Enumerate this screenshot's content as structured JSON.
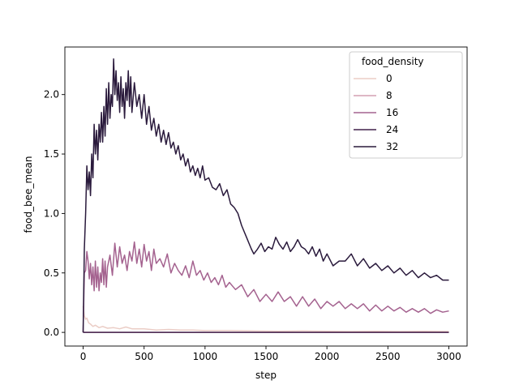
{
  "chart_data": {
    "type": "line",
    "title": "",
    "xlabel": "step",
    "ylabel": "food_bee_mean",
    "xlim": [
      -150,
      3150
    ],
    "ylim": [
      -0.115,
      2.4
    ],
    "xticks": [
      0,
      500,
      1000,
      1500,
      2000,
      2500,
      3000
    ],
    "xtick_labels": [
      "0",
      "500",
      "1000",
      "1500",
      "2000",
      "2500",
      "3000"
    ],
    "yticks": [
      0.0,
      0.5,
      1.0,
      1.5,
      2.0
    ],
    "ytick_labels": [
      "0.0",
      "0.5",
      "1.0",
      "1.5",
      "2.0"
    ],
    "grid": false,
    "legend": {
      "title": "food_density",
      "placement": "top-right",
      "entries": [
        {
          "label": "0",
          "color": "#ebcdc6"
        },
        {
          "label": "8",
          "color": "#d3a0b2"
        },
        {
          "label": "16",
          "color": "#a4628f"
        },
        {
          "label": "24",
          "color": "#40204a"
        },
        {
          "label": "32",
          "color": "#2a1a3c"
        }
      ]
    },
    "series": [
      {
        "name": "0",
        "color": "#ebcdc6",
        "x": [
          0,
          10,
          20,
          30,
          45,
          60,
          80,
          100,
          130,
          160,
          200,
          250,
          300,
          350,
          400,
          500,
          600,
          700,
          800,
          900,
          1000,
          1200,
          1400,
          1600,
          1800,
          2000,
          2200,
          2400,
          2600,
          2800,
          3000
        ],
        "y": [
          0.22,
          0.14,
          0.11,
          0.12,
          0.08,
          0.07,
          0.05,
          0.06,
          0.04,
          0.05,
          0.035,
          0.04,
          0.03,
          0.045,
          0.03,
          0.03,
          0.02,
          0.025,
          0.02,
          0.02,
          0.015,
          0.015,
          0.012,
          0.01,
          0.012,
          0.01,
          0.008,
          0.01,
          0.008,
          0.01,
          0.008
        ]
      },
      {
        "name": "8",
        "color": "#d3a0b2",
        "x": [
          0,
          3000
        ],
        "y": [
          0.0,
          0.0
        ]
      },
      {
        "name": "16",
        "color": "#a4628f",
        "x": [
          0,
          10,
          20,
          30,
          40,
          50,
          60,
          70,
          80,
          90,
          100,
          110,
          120,
          130,
          140,
          150,
          160,
          170,
          180,
          190,
          200,
          220,
          240,
          260,
          280,
          300,
          320,
          340,
          360,
          380,
          400,
          420,
          440,
          460,
          480,
          500,
          520,
          540,
          560,
          580,
          600,
          630,
          660,
          690,
          720,
          750,
          780,
          810,
          840,
          870,
          900,
          930,
          960,
          990,
          1020,
          1050,
          1080,
          1110,
          1140,
          1170,
          1200,
          1250,
          1300,
          1350,
          1400,
          1450,
          1500,
          1550,
          1600,
          1650,
          1700,
          1750,
          1800,
          1850,
          1900,
          1950,
          2000,
          2050,
          2100,
          2150,
          2200,
          2250,
          2300,
          2350,
          2400,
          2450,
          2500,
          2550,
          2600,
          2650,
          2700,
          2750,
          2800,
          2850,
          2900,
          2950,
          3000
        ],
        "y": [
          0.0,
          0.5,
          0.52,
          0.68,
          0.6,
          0.45,
          0.58,
          0.4,
          0.55,
          0.35,
          0.6,
          0.38,
          0.55,
          0.35,
          0.5,
          0.42,
          0.62,
          0.4,
          0.6,
          0.38,
          0.55,
          0.65,
          0.48,
          0.75,
          0.55,
          0.72,
          0.58,
          0.65,
          0.52,
          0.68,
          0.6,
          0.76,
          0.58,
          0.7,
          0.55,
          0.74,
          0.6,
          0.68,
          0.52,
          0.7,
          0.58,
          0.62,
          0.55,
          0.66,
          0.5,
          0.58,
          0.52,
          0.48,
          0.56,
          0.46,
          0.6,
          0.48,
          0.52,
          0.44,
          0.5,
          0.42,
          0.46,
          0.4,
          0.48,
          0.38,
          0.42,
          0.36,
          0.4,
          0.3,
          0.36,
          0.26,
          0.32,
          0.26,
          0.34,
          0.26,
          0.3,
          0.22,
          0.3,
          0.22,
          0.28,
          0.2,
          0.26,
          0.22,
          0.26,
          0.2,
          0.24,
          0.2,
          0.24,
          0.18,
          0.23,
          0.18,
          0.22,
          0.18,
          0.21,
          0.17,
          0.2,
          0.17,
          0.2,
          0.16,
          0.19,
          0.17,
          0.18
        ]
      },
      {
        "name": "24",
        "color": "#40204a",
        "x": [
          0,
          3000
        ],
        "y": [
          0.0,
          0.0
        ]
      },
      {
        "name": "32",
        "color": "#2a1a3c",
        "x": [
          0,
          10,
          20,
          30,
          40,
          50,
          60,
          70,
          80,
          90,
          100,
          110,
          120,
          130,
          140,
          150,
          160,
          170,
          180,
          190,
          200,
          210,
          220,
          230,
          240,
          250,
          260,
          270,
          280,
          290,
          300,
          310,
          320,
          330,
          340,
          350,
          360,
          370,
          380,
          390,
          400,
          420,
          440,
          460,
          480,
          500,
          520,
          540,
          560,
          580,
          600,
          620,
          640,
          660,
          680,
          700,
          720,
          740,
          760,
          780,
          800,
          820,
          840,
          860,
          880,
          900,
          920,
          940,
          960,
          980,
          1000,
          1030,
          1060,
          1090,
          1120,
          1150,
          1180,
          1210,
          1240,
          1270,
          1300,
          1320,
          1340,
          1360,
          1380,
          1400,
          1430,
          1460,
          1490,
          1520,
          1550,
          1580,
          1610,
          1640,
          1670,
          1700,
          1730,
          1760,
          1790,
          1820,
          1850,
          1880,
          1910,
          1940,
          1970,
          2000,
          2050,
          2100,
          2150,
          2200,
          2250,
          2300,
          2350,
          2400,
          2450,
          2500,
          2550,
          2600,
          2650,
          2700,
          2750,
          2800,
          2850,
          2900,
          2950,
          3000
        ],
        "y": [
          0.0,
          0.7,
          1.0,
          1.4,
          1.2,
          1.35,
          1.15,
          1.5,
          1.3,
          1.75,
          1.5,
          1.7,
          1.45,
          1.75,
          1.6,
          1.85,
          1.6,
          1.9,
          1.65,
          2.05,
          1.75,
          2.1,
          1.8,
          2.0,
          1.9,
          2.3,
          2.0,
          2.2,
          1.95,
          2.1,
          1.85,
          2.15,
          1.9,
          2.05,
          1.8,
          2.1,
          1.95,
          2.2,
          1.9,
          2.15,
          1.85,
          2.1,
          1.9,
          2.0,
          1.8,
          2.0,
          1.75,
          1.9,
          1.7,
          1.8,
          1.65,
          1.75,
          1.6,
          1.7,
          1.58,
          1.68,
          1.55,
          1.6,
          1.5,
          1.57,
          1.45,
          1.5,
          1.4,
          1.46,
          1.35,
          1.4,
          1.32,
          1.38,
          1.3,
          1.4,
          1.28,
          1.3,
          1.22,
          1.2,
          1.25,
          1.15,
          1.2,
          1.08,
          1.05,
          1.0,
          0.9,
          0.85,
          0.8,
          0.75,
          0.7,
          0.66,
          0.7,
          0.75,
          0.68,
          0.72,
          0.7,
          0.8,
          0.74,
          0.7,
          0.76,
          0.68,
          0.72,
          0.78,
          0.72,
          0.7,
          0.66,
          0.72,
          0.64,
          0.7,
          0.6,
          0.66,
          0.56,
          0.6,
          0.6,
          0.66,
          0.56,
          0.62,
          0.54,
          0.58,
          0.52,
          0.56,
          0.5,
          0.54,
          0.48,
          0.52,
          0.46,
          0.5,
          0.46,
          0.48,
          0.44,
          0.44
        ]
      }
    ]
  }
}
